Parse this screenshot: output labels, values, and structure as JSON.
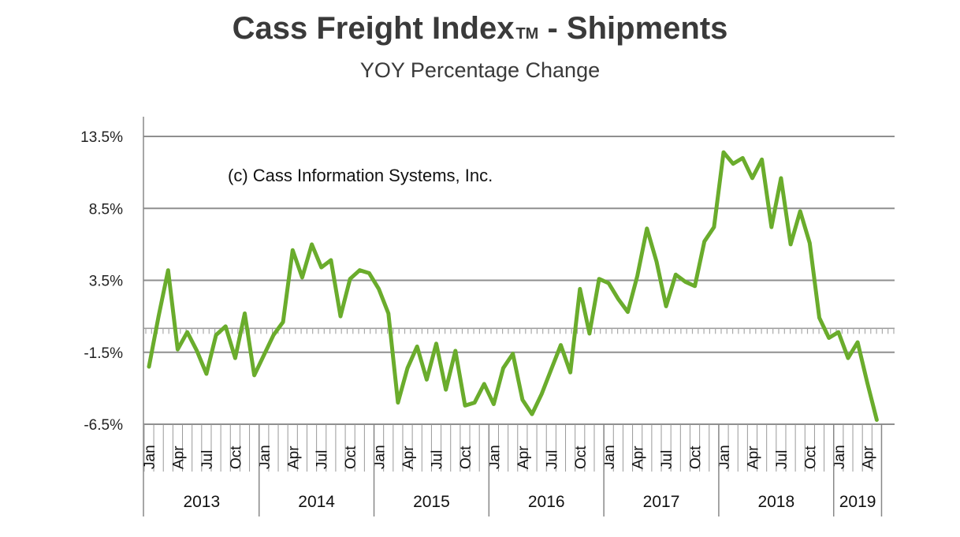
{
  "chart_data": {
    "type": "line",
    "title": "Cass Freight Index",
    "title_mark": "TM",
    "title_suffix": "- Shipments",
    "subtitle": "YOY Percentage Change",
    "annotation": "(c) Cass Information Systems, Inc.",
    "ylim": [
      -6.5,
      13.5
    ],
    "y_ticks": [
      13.5,
      8.5,
      3.5,
      -1.5,
      -6.5
    ],
    "y_tick_labels": [
      "13.5%",
      "8.5%",
      "3.5%",
      "-1.5%",
      "-6.5%"
    ],
    "zero_line": 0.0,
    "month_labels": [
      "Jan",
      "Apr",
      "Jul",
      "Oct"
    ],
    "years": [
      "2013",
      "2014",
      "2015",
      "2016",
      "2017",
      "2018",
      "2019"
    ],
    "line_color": "#6aac2c",
    "series": [
      {
        "x": [
          "2013-01",
          "2013-02",
          "2013-03",
          "2013-04",
          "2013-05",
          "2013-06",
          "2013-07",
          "2013-08",
          "2013-09",
          "2013-10",
          "2013-11",
          "2013-12",
          "2014-01",
          "2014-02",
          "2014-03",
          "2014-04",
          "2014-05",
          "2014-06",
          "2014-07",
          "2014-08",
          "2014-09",
          "2014-10",
          "2014-11",
          "2014-12",
          "2015-01",
          "2015-02",
          "2015-03",
          "2015-04",
          "2015-05",
          "2015-06",
          "2015-07",
          "2015-08",
          "2015-09",
          "2015-10",
          "2015-11",
          "2015-12",
          "2016-01",
          "2016-02",
          "2016-03",
          "2016-04",
          "2016-05",
          "2016-06",
          "2016-07",
          "2016-08",
          "2016-09",
          "2016-10",
          "2016-11",
          "2016-12",
          "2017-01",
          "2017-02",
          "2017-03",
          "2017-04",
          "2017-05",
          "2017-06",
          "2017-07",
          "2017-08",
          "2017-09",
          "2017-10",
          "2017-11",
          "2017-12",
          "2018-01",
          "2018-02",
          "2018-03",
          "2018-04",
          "2018-05",
          "2018-06",
          "2018-07",
          "2018-08",
          "2018-09",
          "2018-10",
          "2018-11",
          "2018-12",
          "2019-01",
          "2019-02",
          "2019-03",
          "2019-04",
          "2019-05"
        ],
        "values": [
          -2.5,
          1.0,
          4.2,
          -1.3,
          -0.1,
          -1.4,
          -3.0,
          -0.3,
          0.3,
          -1.9,
          1.2,
          -3.1,
          -1.7,
          -0.3,
          0.6,
          5.6,
          3.7,
          6.0,
          4.4,
          4.9,
          1.0,
          3.6,
          4.2,
          4.0,
          2.9,
          1.2,
          -5.0,
          -2.6,
          -1.1,
          -3.4,
          -0.9,
          -4.1,
          -1.4,
          -5.2,
          -5.0,
          -3.7,
          -5.1,
          -2.6,
          -1.6,
          -4.8,
          -5.8,
          -4.4,
          -2.7,
          -1.0,
          -2.9,
          2.9,
          -0.2,
          3.6,
          3.3,
          2.2,
          1.3,
          3.8,
          7.1,
          4.8,
          1.7,
          3.9,
          3.4,
          3.1,
          6.2,
          7.2,
          12.4,
          11.6,
          12.0,
          10.6,
          11.9,
          7.2,
          10.6,
          6.0,
          8.3,
          6.1,
          0.9,
          -0.5,
          -0.1,
          -1.9,
          -0.8,
          -3.6,
          -6.2
        ]
      }
    ]
  }
}
